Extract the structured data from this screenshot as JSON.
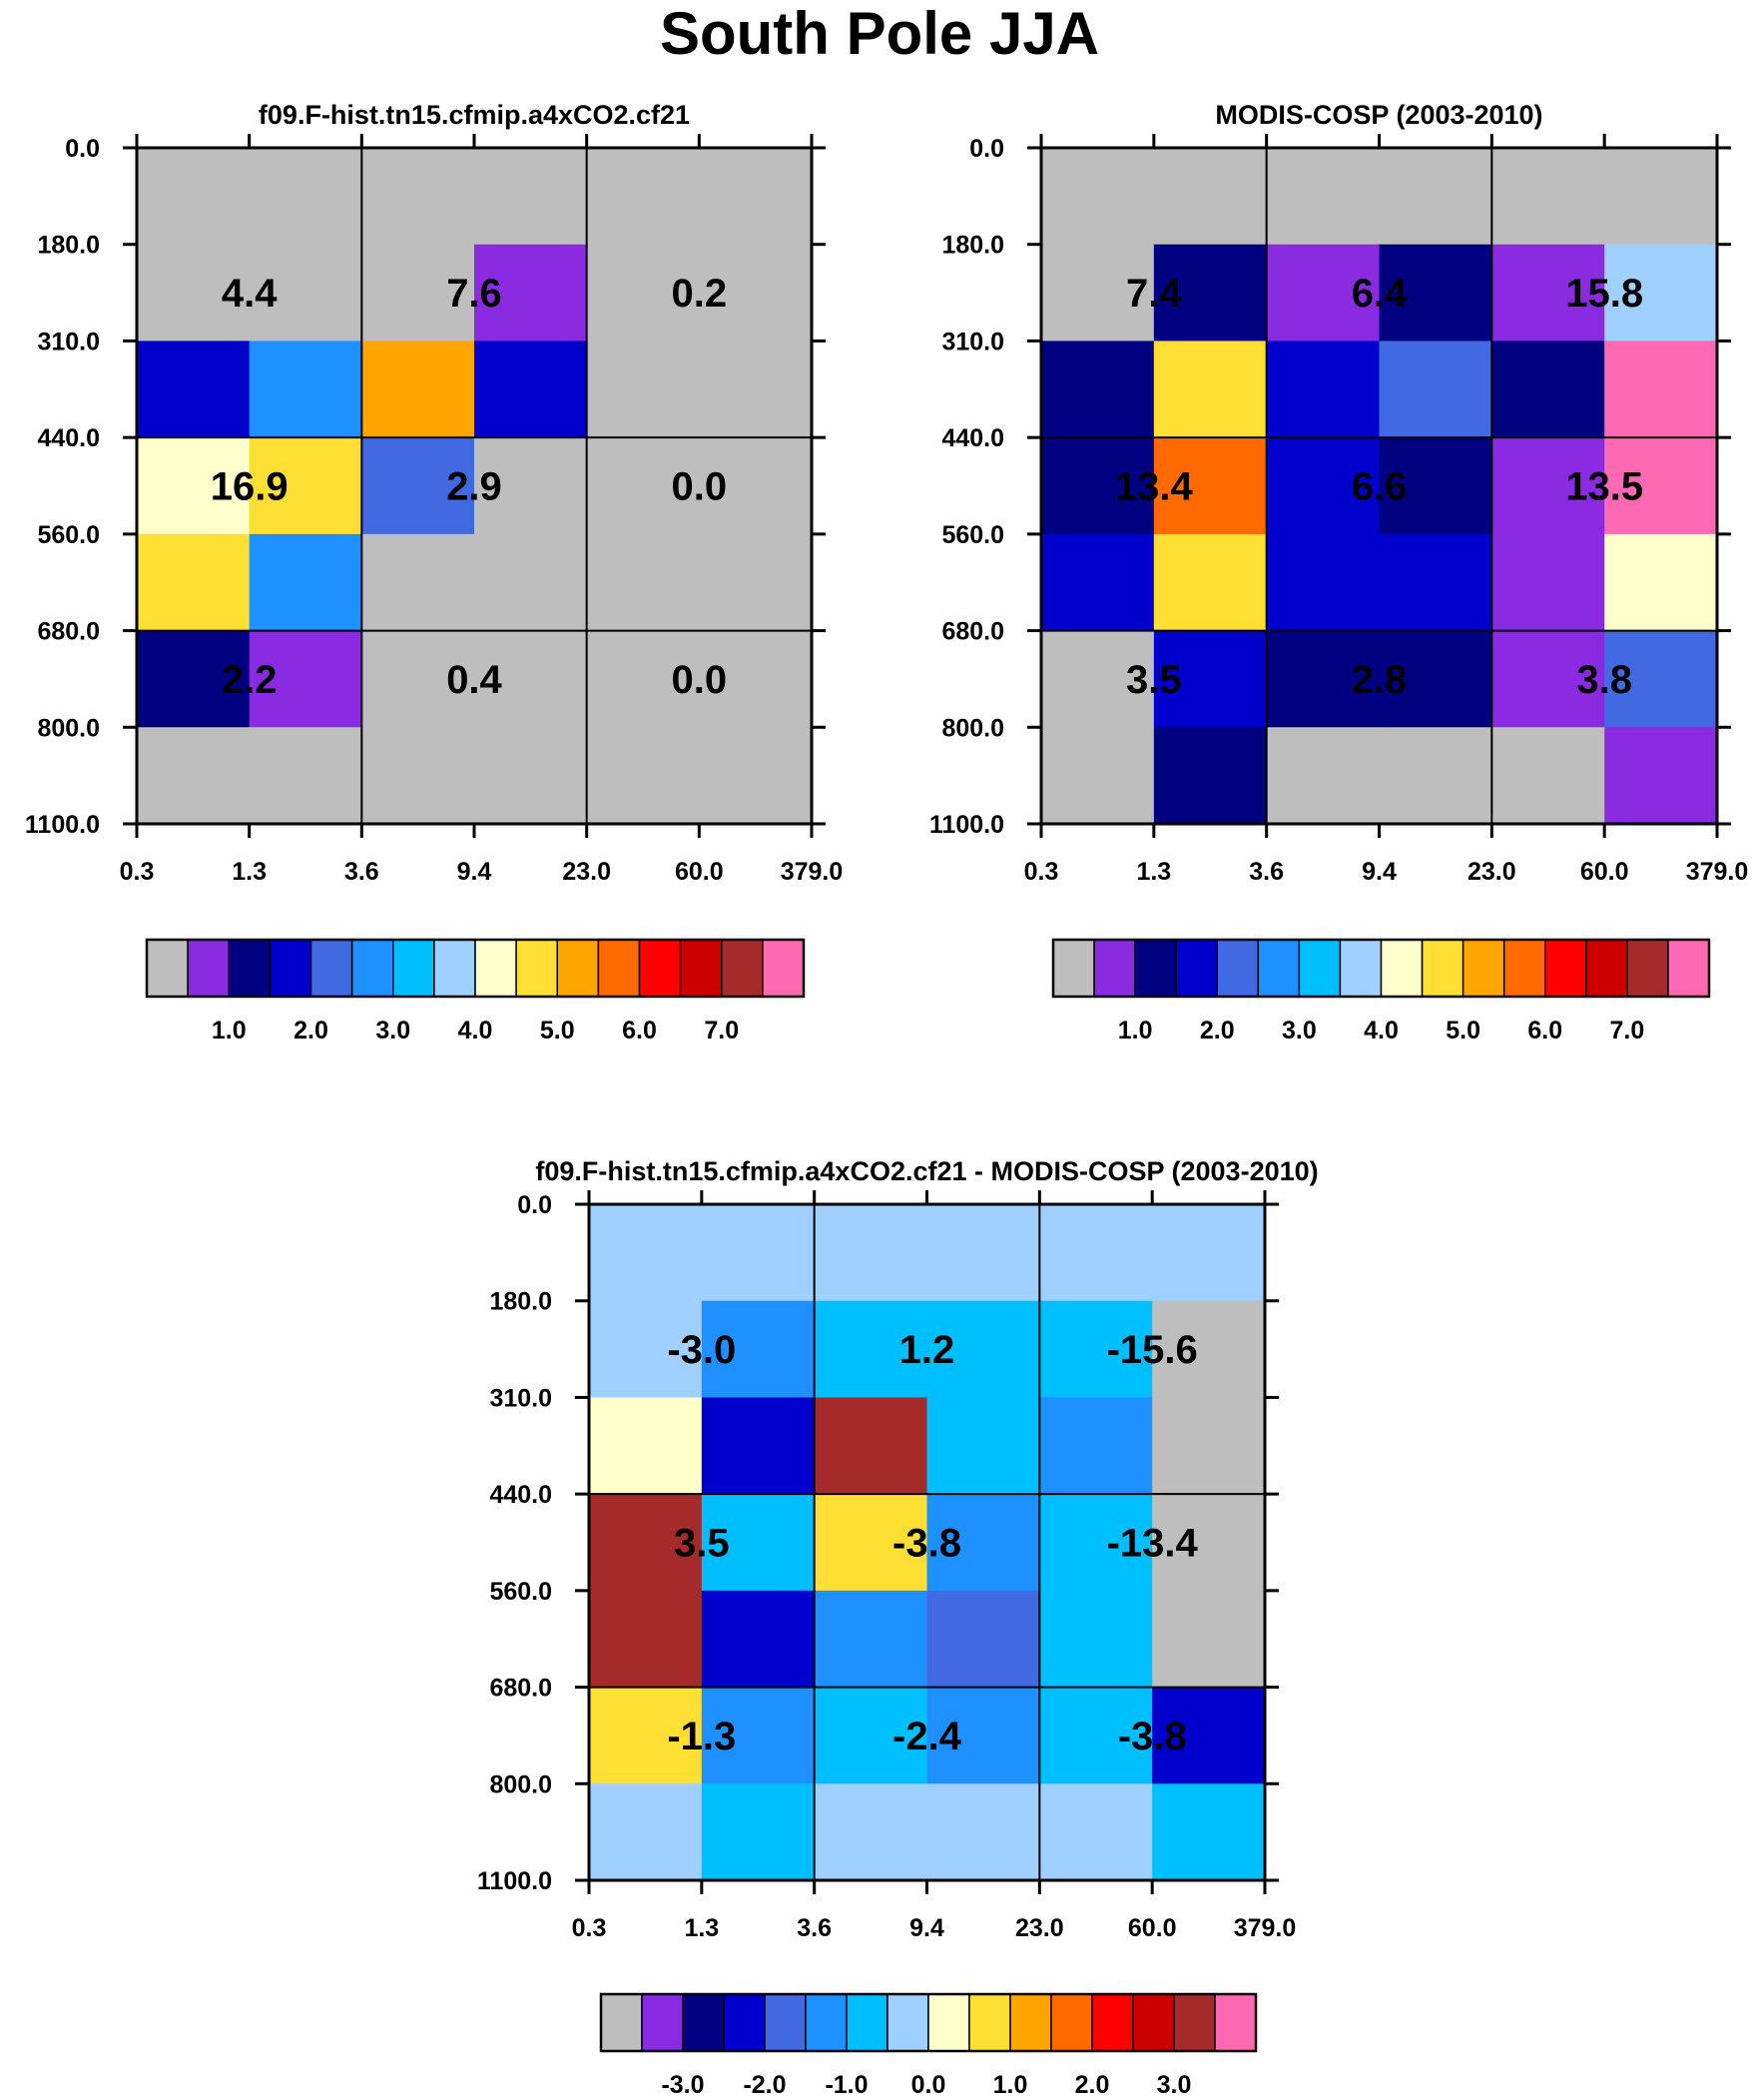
{
  "title": "South Pole JJA",
  "chart_data": [
    {
      "type": "heatmap",
      "title": "f09.F-hist.tn15.cfmip.a4xCO2.cf21",
      "x_ticks": [
        "0.3",
        "1.3",
        "3.6",
        "9.4",
        "23.0",
        "60.0",
        "379.0"
      ],
      "y_ticks": [
        "0.0",
        "180.0",
        "310.0",
        "440.0",
        "560.0",
        "680.0",
        "800.0",
        "1100.0"
      ],
      "cell_colors": [
        [
          "#bebebe",
          "#bebebe",
          "#bebebe",
          "#bebebe",
          "#bebebe",
          "#bebebe"
        ],
        [
          "#bebebe",
          "#bebebe",
          "#bebebe",
          "#8a2be2",
          "#bebebe",
          "#bebebe"
        ],
        [
          "#0000cd",
          "#1e90ff",
          "#ffa500",
          "#0000cd",
          "#bebebe",
          "#bebebe"
        ],
        [
          "#ffffcc",
          "#ffdf33",
          "#4169e1",
          "#bebebe",
          "#bebebe",
          "#bebebe"
        ],
        [
          "#ffdf33",
          "#1e90ff",
          "#bebebe",
          "#bebebe",
          "#bebebe",
          "#bebebe"
        ],
        [
          "#000080",
          "#8a2be2",
          "#bebebe",
          "#bebebe",
          "#bebebe",
          "#bebebe"
        ],
        [
          "#bebebe",
          "#bebebe",
          "#bebebe",
          "#bebebe",
          "#bebebe",
          "#bebebe"
        ]
      ],
      "block_values": [
        [
          "4.4",
          "7.6",
          "0.2"
        ],
        [
          "16.9",
          "2.9",
          "0.0"
        ],
        [
          "2.2",
          "0.4",
          "0.0"
        ]
      ],
      "colorbar": {
        "colors": [
          "#bebebe",
          "#8a2be2",
          "#000080",
          "#0000cd",
          "#4169e1",
          "#1e90ff",
          "#00bfff",
          "#a0d0ff",
          "#ffffcc",
          "#ffdf33",
          "#ffa500",
          "#ff6a00",
          "#ff0000",
          "#cd0000",
          "#a52a2a",
          "#ff69b4"
        ],
        "labels": [
          "1.0",
          "2.0",
          "3.0",
          "4.0",
          "5.0",
          "6.0",
          "7.0"
        ]
      }
    },
    {
      "type": "heatmap",
      "title": "MODIS-COSP (2003-2010)",
      "x_ticks": [
        "0.3",
        "1.3",
        "3.6",
        "9.4",
        "23.0",
        "60.0",
        "379.0"
      ],
      "y_ticks": [
        "0.0",
        "180.0",
        "310.0",
        "440.0",
        "560.0",
        "680.0",
        "800.0",
        "1100.0"
      ],
      "cell_colors": [
        [
          "#bebebe",
          "#bebebe",
          "#bebebe",
          "#bebebe",
          "#bebebe",
          "#bebebe"
        ],
        [
          "#bebebe",
          "#000080",
          "#8a2be2",
          "#000080",
          "#8a2be2",
          "#a0d0ff"
        ],
        [
          "#000080",
          "#ffdf33",
          "#0000cd",
          "#4169e1",
          "#000080",
          "#ff69b4"
        ],
        [
          "#000080",
          "#ff6a00",
          "#0000cd",
          "#000080",
          "#8a2be2",
          "#ff69b4"
        ],
        [
          "#0000cd",
          "#ffdf33",
          "#0000cd",
          "#0000cd",
          "#8a2be2",
          "#ffffcc"
        ],
        [
          "#bebebe",
          "#0000cd",
          "#000080",
          "#000080",
          "#8a2be2",
          "#4169e1"
        ],
        [
          "#bebebe",
          "#000080",
          "#bebebe",
          "#bebebe",
          "#bebebe",
          "#8a2be2"
        ]
      ],
      "block_values": [
        [
          "7.4",
          "6.4",
          "15.8"
        ],
        [
          "13.4",
          "6.6",
          "13.5"
        ],
        [
          "3.5",
          "2.8",
          "3.8"
        ]
      ],
      "colorbar": {
        "colors": [
          "#bebebe",
          "#8a2be2",
          "#000080",
          "#0000cd",
          "#4169e1",
          "#1e90ff",
          "#00bfff",
          "#a0d0ff",
          "#ffffcc",
          "#ffdf33",
          "#ffa500",
          "#ff6a00",
          "#ff0000",
          "#cd0000",
          "#a52a2a",
          "#ff69b4"
        ],
        "labels": [
          "1.0",
          "2.0",
          "3.0",
          "4.0",
          "5.0",
          "6.0",
          "7.0"
        ]
      }
    },
    {
      "type": "heatmap",
      "title": "f09.F-hist.tn15.cfmip.a4xCO2.cf21 - MODIS-COSP (2003-2010)",
      "x_ticks": [
        "0.3",
        "1.3",
        "3.6",
        "9.4",
        "23.0",
        "60.0",
        "379.0"
      ],
      "y_ticks": [
        "0.0",
        "180.0",
        "310.0",
        "440.0",
        "560.0",
        "680.0",
        "800.0",
        "1100.0"
      ],
      "cell_colors": [
        [
          "#a0d0ff",
          "#a0d0ff",
          "#a0d0ff",
          "#a0d0ff",
          "#a0d0ff",
          "#a0d0ff"
        ],
        [
          "#a0d0ff",
          "#1e90ff",
          "#00bfff",
          "#00bfff",
          "#00bfff",
          "#bebebe"
        ],
        [
          "#ffffcc",
          "#0000cd",
          "#a52a2a",
          "#00bfff",
          "#1e90ff",
          "#bebebe"
        ],
        [
          "#a52a2a",
          "#00bfff",
          "#ffdf33",
          "#1e90ff",
          "#00bfff",
          "#bebebe"
        ],
        [
          "#a52a2a",
          "#0000cd",
          "#1e90ff",
          "#4169e1",
          "#00bfff",
          "#bebebe"
        ],
        [
          "#ffdf33",
          "#1e90ff",
          "#00bfff",
          "#1e90ff",
          "#00bfff",
          "#0000cd"
        ],
        [
          "#a0d0ff",
          "#00bfff",
          "#a0d0ff",
          "#a0d0ff",
          "#a0d0ff",
          "#00bfff"
        ]
      ],
      "block_values": [
        [
          "-3.0",
          "1.2",
          "-15.6"
        ],
        [
          "3.5",
          "-3.8",
          "-13.4"
        ],
        [
          "-1.3",
          "-2.4",
          "-3.8"
        ]
      ],
      "colorbar": {
        "colors": [
          "#bebebe",
          "#8a2be2",
          "#000080",
          "#0000cd",
          "#4169e1",
          "#1e90ff",
          "#00bfff",
          "#a0d0ff",
          "#ffffcc",
          "#ffdf33",
          "#ffa500",
          "#ff6a00",
          "#ff0000",
          "#cd0000",
          "#a52a2a",
          "#ff69b4"
        ],
        "labels": [
          "-3.0",
          "-2.0",
          "-1.0",
          "0.0",
          "1.0",
          "2.0",
          "3.0"
        ]
      }
    }
  ]
}
